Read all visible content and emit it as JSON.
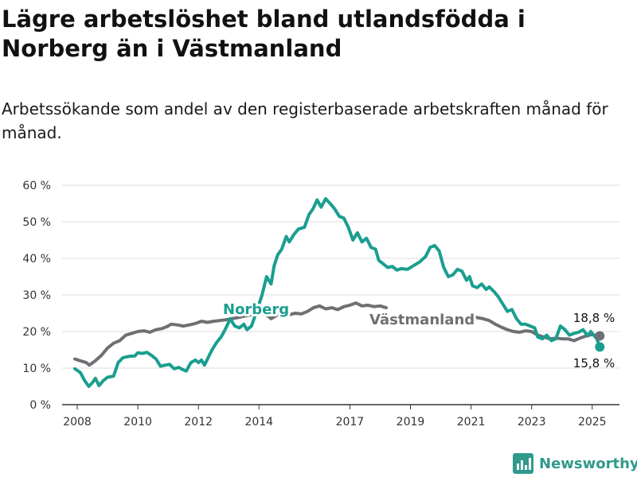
{
  "title": "Lägre arbetslöshet bland utlandsfödda i Norberg än i Västmanland",
  "subtitle": "Arbetssökande som andel av den registerbaserade arbetskraften månad för månad.",
  "brand": "Newsworthy",
  "colors": {
    "norberg": "#1a9e8f",
    "vastmanland": "#6f6f74",
    "grid": "#dddddd",
    "brand": "#2f9a8b"
  },
  "chart_data": {
    "type": "line",
    "x_ticks": [
      2008,
      2010,
      2012,
      2014,
      2017,
      2019,
      2021,
      2023,
      2025
    ],
    "y_ticks": [
      {
        "value": 0,
        "label": "0 %"
      },
      {
        "value": 10,
        "label": "10 %"
      },
      {
        "value": 20,
        "label": "20 %"
      },
      {
        "value": 30,
        "label": "30 %"
      },
      {
        "value": 40,
        "label": "40 %"
      },
      {
        "value": 50,
        "label": "50 %"
      },
      {
        "value": 60,
        "label": "60 %"
      }
    ],
    "ylim": [
      0,
      60
    ],
    "xlim": [
      2007.5,
      2025.9
    ],
    "grid": true,
    "series": [
      {
        "name": "Norberg",
        "color": "#1a9e8f",
        "end_label": "15,8 %",
        "points": [
          [
            2007.92,
            9.8
          ],
          [
            2008.1,
            8.8
          ],
          [
            2008.25,
            6.5
          ],
          [
            2008.38,
            5.0
          ],
          [
            2008.5,
            6.0
          ],
          [
            2008.6,
            7.2
          ],
          [
            2008.72,
            5.2
          ],
          [
            2008.85,
            6.5
          ],
          [
            2009.0,
            7.5
          ],
          [
            2009.2,
            7.8
          ],
          [
            2009.35,
            11.5
          ],
          [
            2009.5,
            12.8
          ],
          [
            2009.7,
            13.2
          ],
          [
            2009.9,
            13.3
          ],
          [
            2010.0,
            14.2
          ],
          [
            2010.15,
            14.0
          ],
          [
            2010.3,
            14.3
          ],
          [
            2010.45,
            13.5
          ],
          [
            2010.6,
            12.5
          ],
          [
            2010.75,
            10.5
          ],
          [
            2010.9,
            10.8
          ],
          [
            2011.05,
            11.0
          ],
          [
            2011.2,
            9.8
          ],
          [
            2011.35,
            10.2
          ],
          [
            2011.5,
            9.5
          ],
          [
            2011.6,
            9.2
          ],
          [
            2011.75,
            11.5
          ],
          [
            2011.9,
            12.2
          ],
          [
            2012.0,
            11.5
          ],
          [
            2012.1,
            12.2
          ],
          [
            2012.2,
            10.8
          ],
          [
            2012.3,
            12.5
          ],
          [
            2012.45,
            15.0
          ],
          [
            2012.6,
            17.0
          ],
          [
            2012.75,
            18.5
          ],
          [
            2012.9,
            20.8
          ],
          [
            2013.05,
            23.5
          ],
          [
            2013.2,
            21.5
          ],
          [
            2013.35,
            21.0
          ],
          [
            2013.5,
            22.0
          ],
          [
            2013.6,
            20.5
          ],
          [
            2013.75,
            21.5
          ],
          [
            2013.9,
            25.0
          ],
          [
            2014.1,
            30.0
          ],
          [
            2014.25,
            35.0
          ],
          [
            2014.4,
            33.0
          ],
          [
            2014.5,
            38.0
          ],
          [
            2014.62,
            41.0
          ],
          [
            2014.75,
            42.5
          ],
          [
            2014.9,
            46.0
          ],
          [
            2015.0,
            44.5
          ],
          [
            2015.15,
            46.5
          ],
          [
            2015.3,
            48.0
          ],
          [
            2015.5,
            48.5
          ],
          [
            2015.65,
            52.0
          ],
          [
            2015.78,
            53.5
          ],
          [
            2015.92,
            56.0
          ],
          [
            2016.05,
            54.0
          ],
          [
            2016.2,
            56.3
          ],
          [
            2016.35,
            55.0
          ],
          [
            2016.5,
            53.5
          ],
          [
            2016.65,
            51.5
          ],
          [
            2016.8,
            51.0
          ],
          [
            2016.95,
            48.5
          ],
          [
            2017.1,
            45.0
          ],
          [
            2017.25,
            47.0
          ],
          [
            2017.4,
            44.5
          ],
          [
            2017.55,
            45.5
          ],
          [
            2017.7,
            43.0
          ],
          [
            2017.85,
            42.5
          ],
          [
            2017.95,
            39.5
          ],
          [
            2018.1,
            38.5
          ],
          [
            2018.25,
            37.5
          ],
          [
            2018.4,
            37.8
          ],
          [
            2018.55,
            36.8
          ],
          [
            2018.7,
            37.2
          ],
          [
            2018.9,
            37.0
          ],
          [
            2019.1,
            38.0
          ],
          [
            2019.3,
            39.0
          ],
          [
            2019.5,
            40.5
          ],
          [
            2019.65,
            43.0
          ],
          [
            2019.8,
            43.5
          ],
          [
            2019.95,
            42.0
          ],
          [
            2020.1,
            37.5
          ],
          [
            2020.25,
            35.0
          ],
          [
            2020.4,
            35.5
          ],
          [
            2020.55,
            37.0
          ],
          [
            2020.7,
            36.5
          ],
          [
            2020.85,
            34.0
          ],
          [
            2020.95,
            35.0
          ],
          [
            2021.05,
            32.5
          ],
          [
            2021.2,
            32.0
          ],
          [
            2021.35,
            33.0
          ],
          [
            2021.5,
            31.5
          ],
          [
            2021.6,
            32.2
          ],
          [
            2021.75,
            31.0
          ],
          [
            2021.9,
            29.5
          ],
          [
            2022.05,
            27.5
          ],
          [
            2022.2,
            25.5
          ],
          [
            2022.35,
            26.0
          ],
          [
            2022.5,
            23.5
          ],
          [
            2022.65,
            22.0
          ],
          [
            2022.8,
            22.0
          ],
          [
            2022.95,
            21.5
          ],
          [
            2023.1,
            21.0
          ],
          [
            2023.2,
            18.5
          ],
          [
            2023.35,
            18.0
          ],
          [
            2023.5,
            19.0
          ],
          [
            2023.65,
            17.5
          ],
          [
            2023.8,
            18.0
          ],
          [
            2023.95,
            21.5
          ],
          [
            2024.1,
            20.5
          ],
          [
            2024.25,
            19.0
          ],
          [
            2024.4,
            19.5
          ],
          [
            2024.55,
            19.8
          ],
          [
            2024.7,
            20.5
          ],
          [
            2024.85,
            18.8
          ],
          [
            2024.95,
            20.0
          ],
          [
            2025.05,
            19.0
          ],
          [
            2025.15,
            18.0
          ],
          [
            2025.25,
            15.8
          ]
        ]
      },
      {
        "name": "Västmanland",
        "color": "#6f6f74",
        "end_label": "18,8 %",
        "points": [
          [
            2007.92,
            12.5
          ],
          [
            2008.1,
            12.0
          ],
          [
            2008.3,
            11.5
          ],
          [
            2008.4,
            10.8
          ],
          [
            2008.6,
            12.0
          ],
          [
            2008.8,
            13.5
          ],
          [
            2009.0,
            15.5
          ],
          [
            2009.2,
            16.8
          ],
          [
            2009.4,
            17.5
          ],
          [
            2009.6,
            19.0
          ],
          [
            2009.8,
            19.5
          ],
          [
            2010.0,
            20.0
          ],
          [
            2010.2,
            20.2
          ],
          [
            2010.4,
            19.8
          ],
          [
            2010.6,
            20.5
          ],
          [
            2010.8,
            20.8
          ],
          [
            2011.0,
            21.5
          ],
          [
            2011.1,
            22.0
          ],
          [
            2011.3,
            21.8
          ],
          [
            2011.5,
            21.5
          ],
          [
            2011.7,
            21.8
          ],
          [
            2011.9,
            22.2
          ],
          [
            2012.1,
            22.8
          ],
          [
            2012.3,
            22.5
          ],
          [
            2012.5,
            22.8
          ],
          [
            2012.7,
            23.0
          ],
          [
            2012.9,
            23.2
          ],
          [
            2013.1,
            23.5
          ],
          [
            2013.3,
            23.8
          ],
          [
            2013.5,
            24.2
          ],
          [
            2013.7,
            24.5
          ],
          [
            2013.9,
            24.8
          ],
          [
            2014.1,
            25.0
          ],
          [
            2014.3,
            24.2
          ],
          [
            2014.4,
            23.5
          ],
          [
            2014.6,
            24.5
          ],
          [
            2014.8,
            25.0
          ],
          [
            2015.0,
            24.6
          ],
          [
            2015.2,
            25.0
          ],
          [
            2015.4,
            24.8
          ],
          [
            2015.6,
            25.5
          ],
          [
            2015.8,
            26.5
          ],
          [
            2016.0,
            27.0
          ],
          [
            2016.2,
            26.2
          ],
          [
            2016.4,
            26.5
          ],
          [
            2016.6,
            26.0
          ],
          [
            2016.8,
            26.8
          ],
          [
            2017.0,
            27.2
          ],
          [
            2017.2,
            27.8
          ],
          [
            2017.4,
            27.0
          ],
          [
            2017.6,
            27.2
          ],
          [
            2017.8,
            26.8
          ],
          [
            2018.0,
            27.0
          ],
          [
            2018.2,
            26.5
          ]
        ],
        "points_late": [
          [
            2021.0,
            24.2
          ],
          [
            2021.2,
            23.8
          ],
          [
            2021.4,
            23.5
          ],
          [
            2021.6,
            23.0
          ],
          [
            2021.8,
            22.0
          ],
          [
            2022.0,
            21.2
          ],
          [
            2022.2,
            20.5
          ],
          [
            2022.4,
            20.0
          ],
          [
            2022.6,
            19.8
          ],
          [
            2022.8,
            20.2
          ],
          [
            2023.0,
            20.0
          ],
          [
            2023.2,
            19.0
          ],
          [
            2023.4,
            18.5
          ],
          [
            2023.6,
            18.0
          ],
          [
            2023.8,
            18.2
          ],
          [
            2024.0,
            18.0
          ],
          [
            2024.2,
            18.0
          ],
          [
            2024.4,
            17.5
          ],
          [
            2024.6,
            18.2
          ],
          [
            2024.8,
            18.8
          ],
          [
            2025.0,
            19.2
          ],
          [
            2025.15,
            18.8
          ],
          [
            2025.25,
            18.8
          ]
        ]
      }
    ]
  }
}
